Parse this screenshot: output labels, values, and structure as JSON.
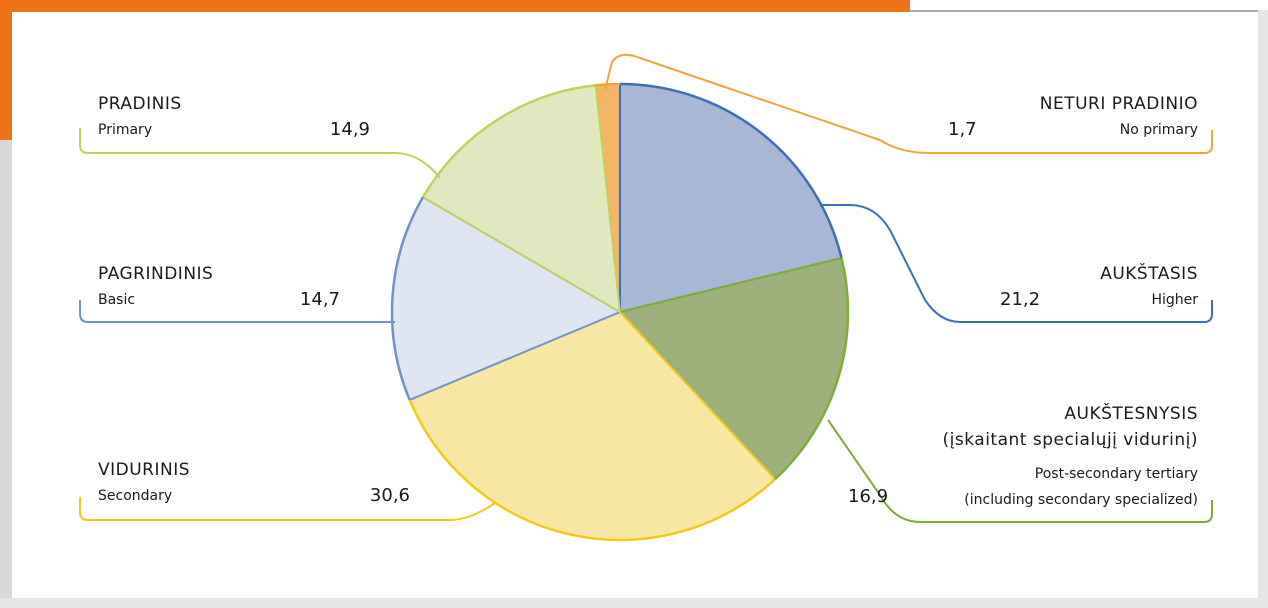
{
  "chart_data": {
    "type": "pie",
    "labels_lt": [
      [
        "NETURI PRADINIO"
      ],
      [
        "AUKŠTASIS"
      ],
      [
        "AUKŠTESNYSIS",
        "(įskaitant specialųjį vidurinį)"
      ],
      [
        "VIDURINIS"
      ],
      [
        "PAGRINDINIS"
      ],
      [
        "PRADINIS"
      ]
    ],
    "labels_en": [
      [
        "No primary"
      ],
      [
        "Higher"
      ],
      [
        "Post-secondary tertiary",
        "(including secondary specialized)"
      ],
      [
        "Secondary"
      ],
      [
        "Basic"
      ],
      [
        "Primary"
      ]
    ],
    "values": [
      1.7,
      21.2,
      16.9,
      30.6,
      14.7,
      14.9
    ],
    "value_labels": [
      "1,7",
      "21,2",
      "16,9",
      "30,6",
      "14,7",
      "14,9"
    ],
    "colors": [
      "#f2a53a",
      "#3d6fb6",
      "#7aaf32",
      "#f2c81c",
      "#6f93c8",
      "#bfd15e"
    ],
    "fills": [
      "#f6b466",
      "#a9b7d6",
      "#9db07c",
      "#f8e7a2",
      "#dfe5f1",
      "#dfe8bf"
    ]
  }
}
